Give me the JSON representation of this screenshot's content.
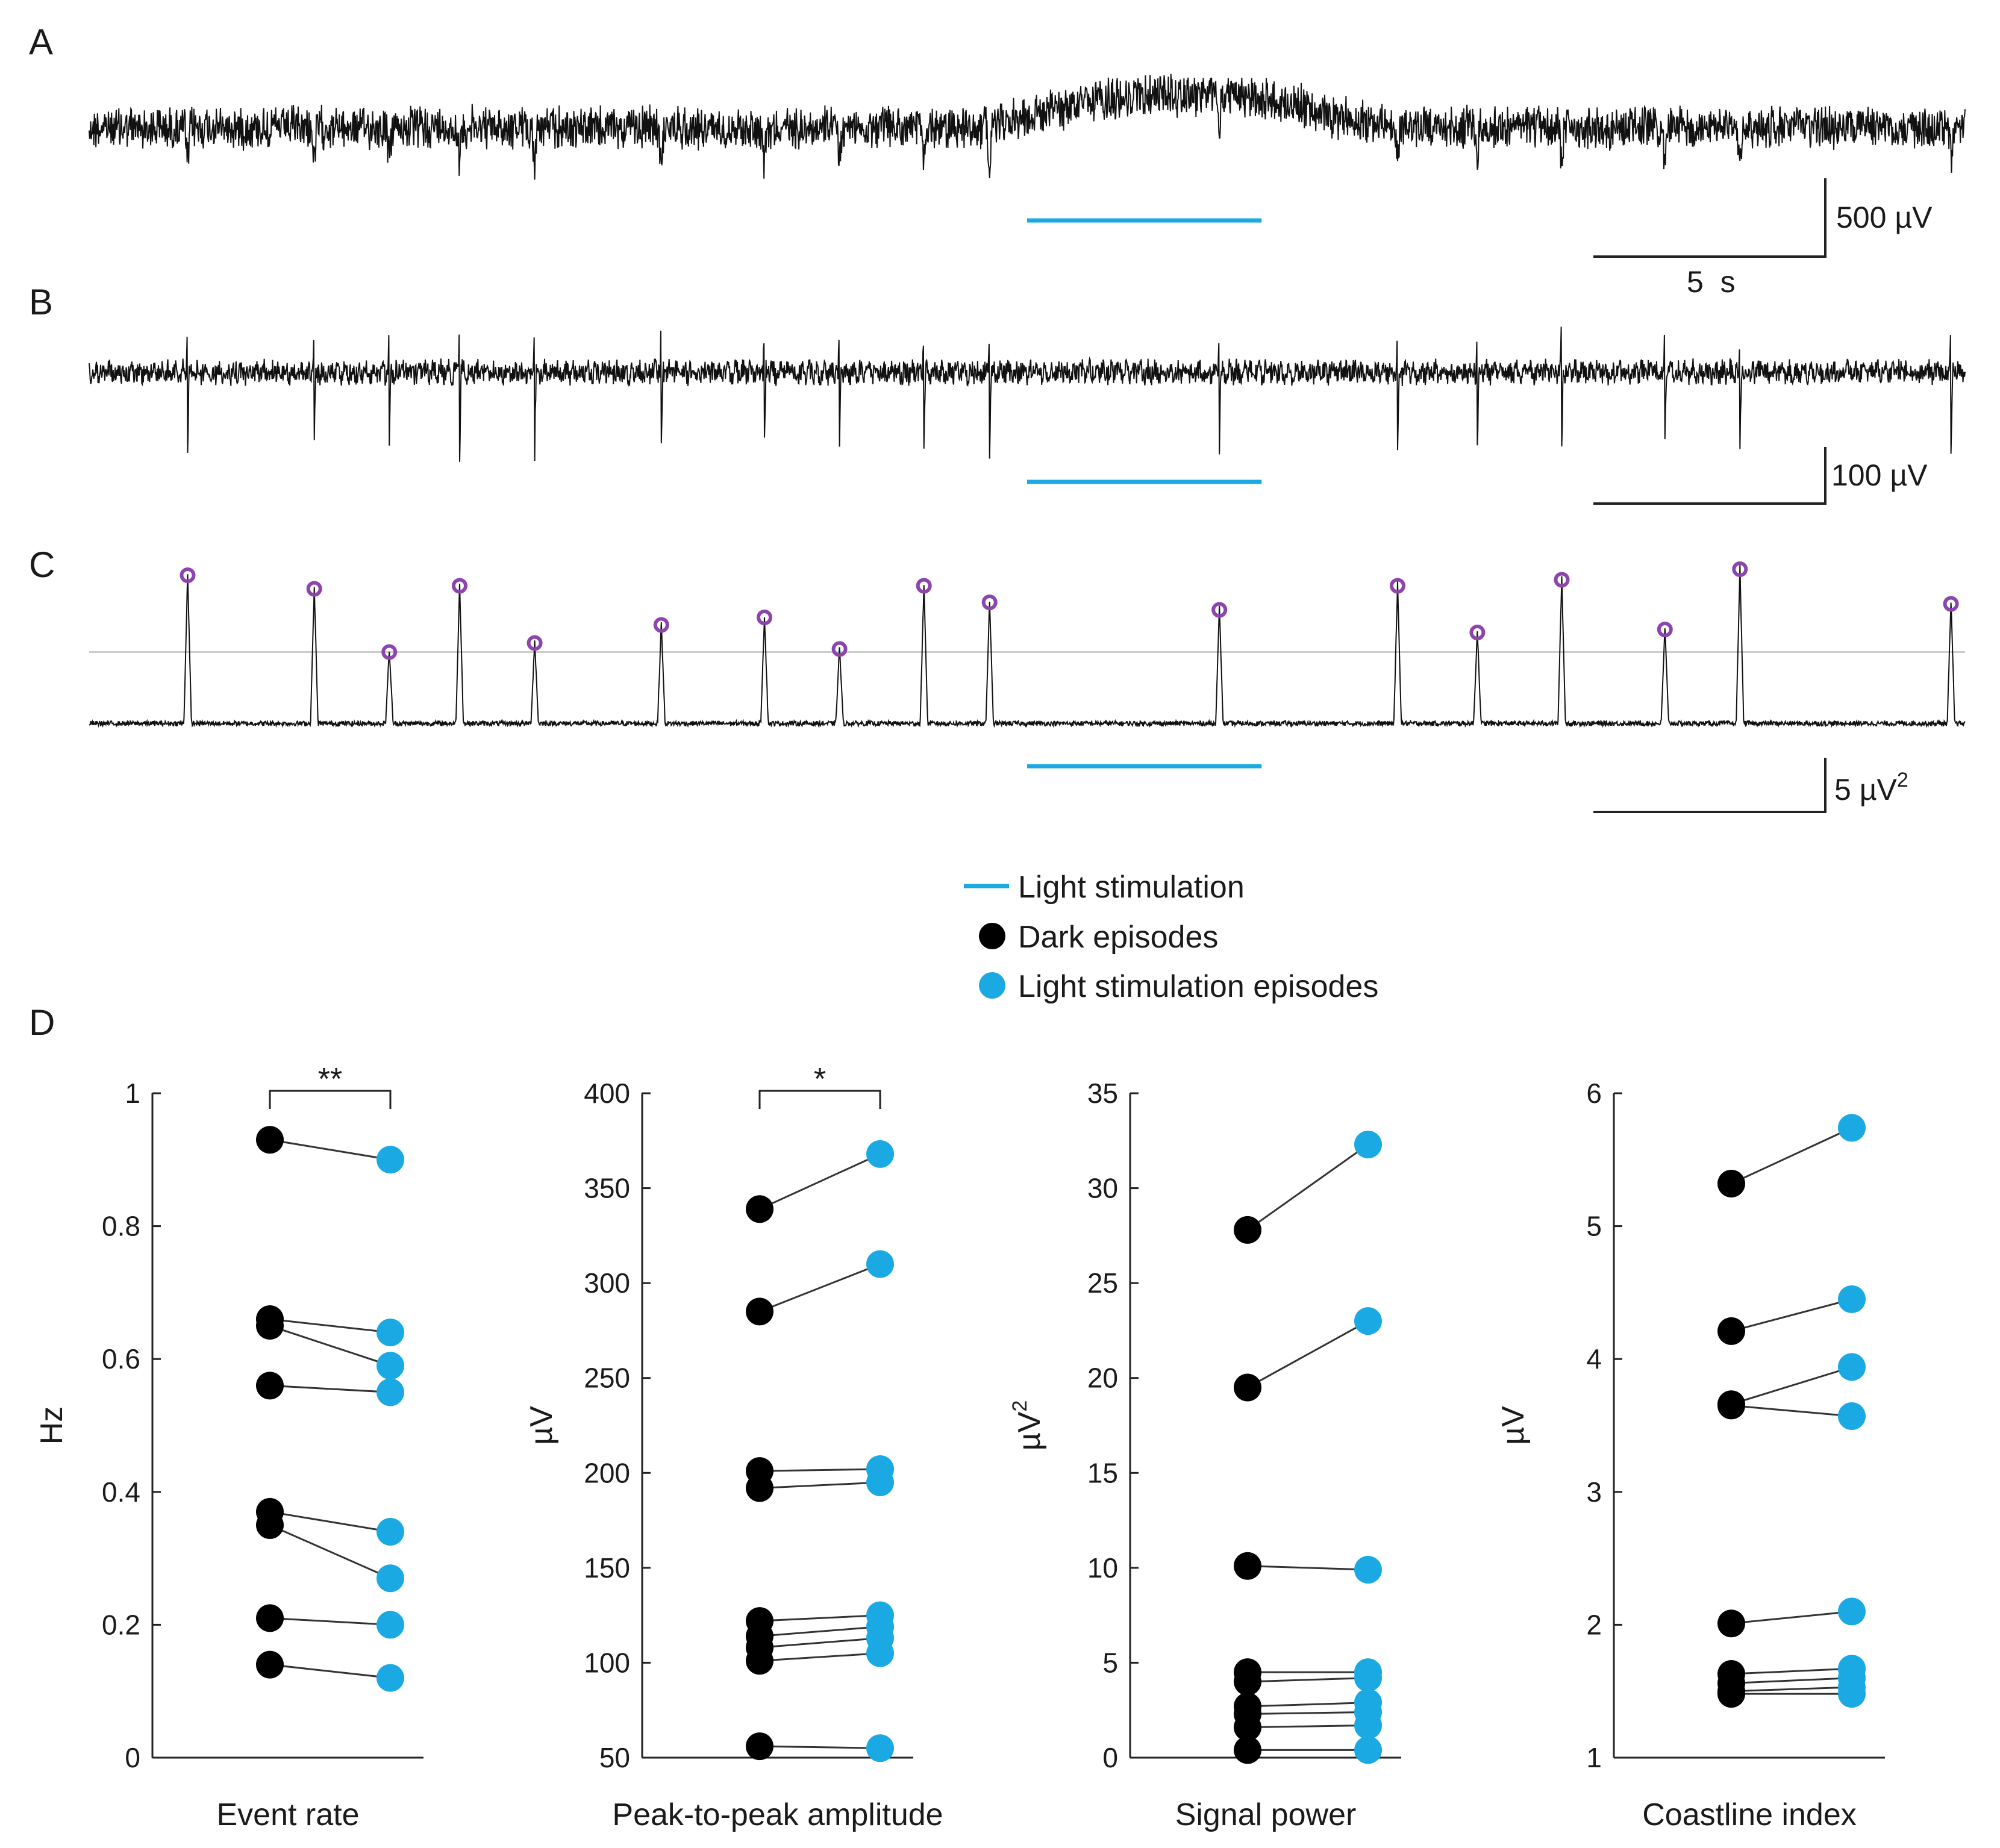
{
  "colors": {
    "dark": "#000000",
    "light": "#1aa9e3",
    "peak": "#8e44ad",
    "threshold": "#cccccc",
    "trace": "#111111"
  },
  "panels": {
    "a": {
      "label": "A",
      "scale_y": "500 µV",
      "scale_x": "5  s"
    },
    "b": {
      "label": "B",
      "scale_y": "100 µV"
    },
    "c": {
      "label": "C",
      "scale_y": "5 µV",
      "scale_y_sup": "2"
    },
    "d": {
      "label": "D"
    }
  },
  "legend": {
    "light_stim": "Light stimulation",
    "dark": "Dark episodes",
    "light_episodes": "Light stimulation episodes"
  },
  "recording": {
    "duration_s": 40,
    "light_on_s": [
      20.0,
      25.0
    ],
    "event_times_s": [
      2.1,
      4.8,
      6.4,
      7.9,
      9.5,
      12.2,
      14.4,
      16.0,
      17.8,
      19.2,
      24.1,
      27.9,
      29.6,
      31.4,
      33.6,
      35.2,
      39.7
    ],
    "event_peaks_norm": [
      1.0,
      0.91,
      0.49,
      0.93,
      0.55,
      0.67,
      0.72,
      0.51,
      0.93,
      0.82,
      0.77,
      0.93,
      0.62,
      0.97,
      0.64,
      1.04,
      0.81
    ],
    "threshold_norm": 0.49
  },
  "chart_data": [
    {
      "type": "scatter",
      "title": "Event rate",
      "xlabel": "Event rate",
      "ylabel": "Hz",
      "ylim": [
        0,
        1
      ],
      "yticks": [
        "0",
        "0.2",
        "0.4",
        "0.6",
        "0.8",
        "1"
      ],
      "tick_values": [
        0,
        0.2,
        0.4,
        0.6,
        0.8,
        1
      ],
      "significance": "**",
      "series": [
        {
          "name": "Dark episodes",
          "values": [
            0.93,
            0.66,
            0.65,
            0.56,
            0.37,
            0.35,
            0.21,
            0.14
          ]
        },
        {
          "name": "Light stimulation episodes",
          "values": [
            0.9,
            0.64,
            0.59,
            0.55,
            0.34,
            0.27,
            0.2,
            0.12
          ]
        }
      ]
    },
    {
      "type": "scatter",
      "title": "Peak-to-peak amplitude",
      "xlabel": "Peak-to-peak amplitude",
      "ylabel": "µV",
      "ylim": [
        50,
        400
      ],
      "yticks": [
        "50",
        "100",
        "150",
        "200",
        "250",
        "300",
        "350",
        "400"
      ],
      "tick_values": [
        50,
        100,
        150,
        200,
        250,
        300,
        350,
        400
      ],
      "significance": "*",
      "series": [
        {
          "name": "Dark episodes",
          "values": [
            339,
            285,
            201,
            192,
            122,
            114,
            108,
            101,
            56
          ]
        },
        {
          "name": "Light stimulation episodes",
          "values": [
            368,
            310,
            202,
            195,
            125,
            119,
            113,
            105,
            55
          ]
        }
      ]
    },
    {
      "type": "scatter",
      "title": "Signal power",
      "xlabel": "Signal power",
      "ylabel": "µV",
      "ylabel_sup": "2",
      "ylim": [
        0,
        35
      ],
      "yticks": [
        "0",
        "5",
        "10",
        "15",
        "20",
        "25",
        "30",
        "35"
      ],
      "tick_values": [
        0,
        5,
        10,
        15,
        20,
        25,
        30,
        35
      ],
      "significance": "",
      "series": [
        {
          "name": "Dark episodes",
          "values": [
            27.8,
            19.5,
            10.1,
            4.5,
            4.0,
            2.7,
            2.3,
            1.6,
            0.4
          ]
        },
        {
          "name": "Light stimulation episodes",
          "values": [
            32.3,
            23.0,
            9.9,
            4.5,
            4.2,
            2.9,
            2.4,
            1.7,
            0.4
          ]
        }
      ]
    },
    {
      "type": "scatter",
      "title": "Coastline index",
      "xlabel": "Coastline index",
      "ylabel": "µV",
      "ylim": [
        1,
        6
      ],
      "yticks": [
        "1",
        "2",
        "3",
        "4",
        "5",
        "6"
      ],
      "tick_values": [
        1,
        2,
        3,
        4,
        5,
        6
      ],
      "significance": "",
      "series": [
        {
          "name": "Dark episodes",
          "values": [
            5.32,
            4.21,
            3.66,
            3.65,
            2.01,
            1.63,
            1.56,
            1.5,
            1.48
          ]
        },
        {
          "name": "Light stimulation episodes",
          "values": [
            5.74,
            4.45,
            3.94,
            3.57,
            2.1,
            1.67,
            1.6,
            1.53,
            1.48
          ]
        }
      ]
    }
  ]
}
